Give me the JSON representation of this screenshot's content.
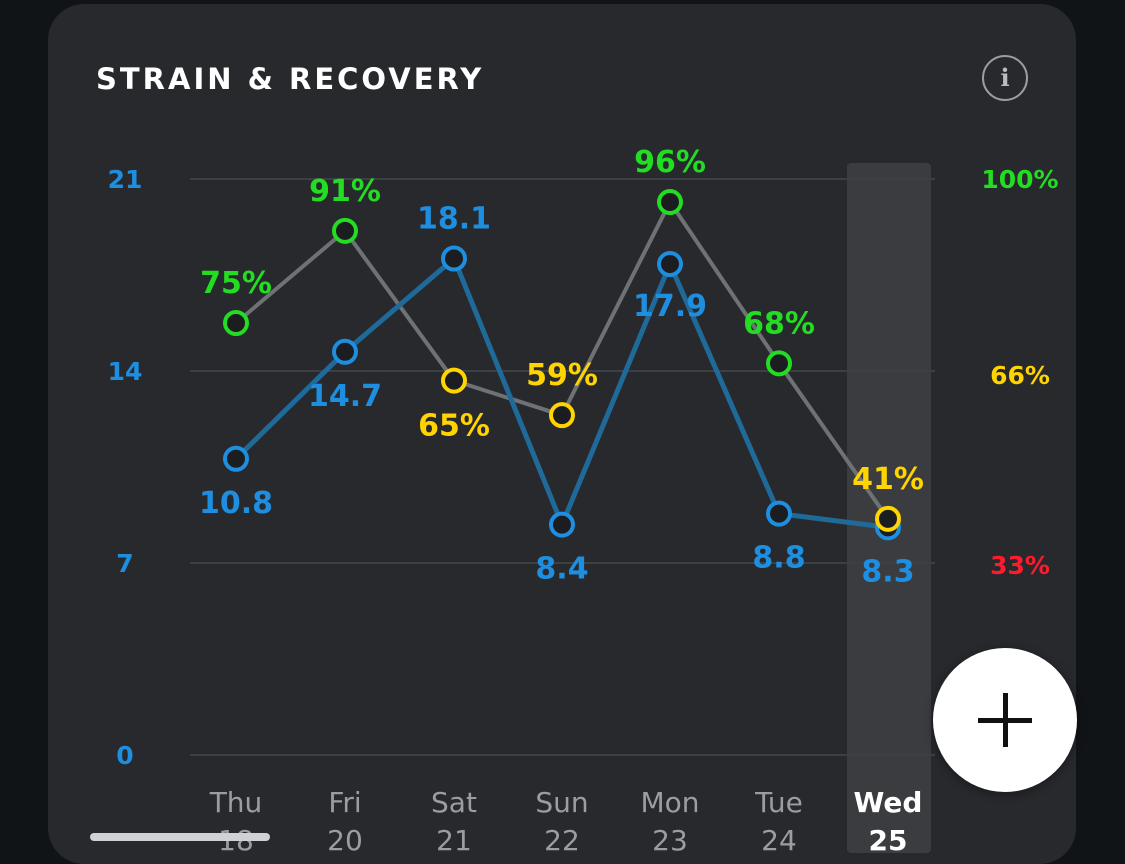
{
  "header": {
    "title": "STRAIN & RECOVERY",
    "info_icon": "i"
  },
  "colors": {
    "strain": "#1e8fe0",
    "strain_line": "#1f6a99",
    "recovery_line": "#6f7275",
    "recovery_green": "#22dd22",
    "recovery_yellow": "#ffd400",
    "recovery_red": "#ff1a2e",
    "selected_day": "#3a3c40"
  },
  "chart_data": {
    "type": "line",
    "categories": [
      "Thu",
      "Fri",
      "Sat",
      "Sun",
      "Mon",
      "Tue",
      "Wed"
    ],
    "date_labels": [
      "18",
      "20",
      "21",
      "22",
      "23",
      "24",
      "25"
    ],
    "selected_category": "Wed",
    "left_axis": {
      "ticks": [
        "21",
        "14",
        "7",
        "0"
      ],
      "range": [
        0,
        21
      ]
    },
    "right_axis": {
      "ticks": [
        "100%",
        "66%",
        "33%"
      ],
      "range": [
        0,
        100
      ]
    },
    "grid": true,
    "series": [
      {
        "key": "strain",
        "values": [
          10.8,
          14.7,
          18.1,
          8.4,
          17.9,
          8.8,
          8.3
        ],
        "labels": [
          "10.8",
          "14.7",
          "18.1",
          "8.4",
          "17.9",
          "8.8",
          "8.3"
        ]
      },
      {
        "key": "recovery",
        "values": [
          75,
          91,
          65,
          59,
          96,
          68,
          41
        ],
        "labels": [
          "75%",
          "91%",
          "65%",
          "59%",
          "96%",
          "68%",
          "41%"
        ],
        "point_colors": [
          "green",
          "green",
          "yellow",
          "yellow",
          "green",
          "green",
          "yellow"
        ]
      }
    ]
  },
  "fab": {
    "icon": "plus-icon"
  }
}
